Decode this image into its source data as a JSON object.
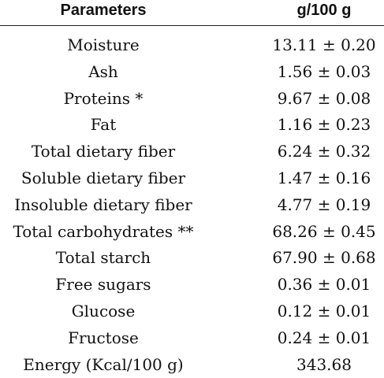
{
  "table": {
    "header": {
      "parameter": "Parameters",
      "value": "g/100 g"
    },
    "rows": [
      {
        "parameter": "Moisture",
        "value": "13.11 ± 0.20"
      },
      {
        "parameter": "Ash",
        "value": "1.56 ± 0.03"
      },
      {
        "parameter": "Proteins *",
        "value": "9.67 ± 0.08"
      },
      {
        "parameter": "Fat",
        "value": "1.16 ± 0.23"
      },
      {
        "parameter": "Total dietary fiber",
        "value": "6.24 ± 0.32"
      },
      {
        "parameter": "Soluble dietary fiber",
        "value": "1.47 ± 0.16"
      },
      {
        "parameter": "Insoluble dietary fiber",
        "value": "4.77 ± 0.19"
      },
      {
        "parameter": "Total carbohydrates **",
        "value": "68.26 ± 0.45"
      },
      {
        "parameter": "Total starch",
        "value": "67.90 ± 0.68"
      },
      {
        "parameter": "Free sugars",
        "value": "0.36 ± 0.01"
      },
      {
        "parameter": "Glucose",
        "value": "0.12 ± 0.01"
      },
      {
        "parameter": "Fructose",
        "value": "0.24 ± 0.01"
      },
      {
        "parameter": "Energy (Kcal/100 g)",
        "value": "343.68"
      }
    ]
  }
}
